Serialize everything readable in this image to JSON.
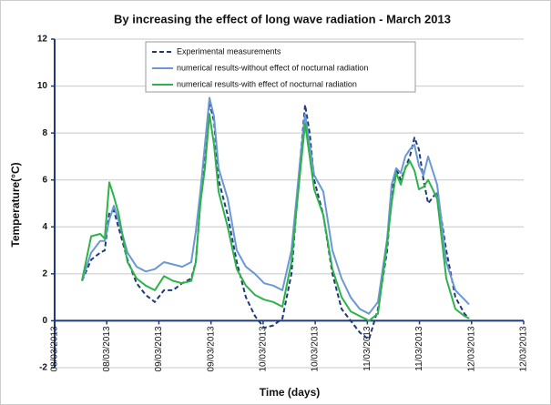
{
  "chart_data": {
    "type": "line",
    "title": "By increasing the effect of long wave radiation - March 2013",
    "x_label": "Time (days)",
    "y_label": "Temperature(°C)",
    "xlim": [
      0,
      4.5
    ],
    "xticks": [
      {
        "value": 0,
        "label": "08/03/2013"
      },
      {
        "value": 0.5,
        "label": "08/03/2013"
      },
      {
        "value": 1,
        "label": "09/03/2013"
      },
      {
        "value": 1.5,
        "label": "09/03/2013"
      },
      {
        "value": 2,
        "label": "10/03/2013"
      },
      {
        "value": 2.5,
        "label": "10/03/2013"
      },
      {
        "value": 3,
        "label": "11/03/2013"
      },
      {
        "value": 3.5,
        "label": "11/03/2013"
      },
      {
        "value": 4,
        "label": "12/03/2013"
      },
      {
        "value": 4.5,
        "label": "12/03/2013"
      }
    ],
    "ylim": [
      -2,
      12
    ],
    "yticks": [
      -2,
      0,
      2,
      4,
      6,
      8,
      10,
      12
    ],
    "grid": true,
    "x": [
      0.262,
      0.35,
      0.437,
      0.481,
      0.524,
      0.568,
      0.612,
      0.699,
      0.786,
      0.874,
      0.961,
      1.049,
      1.136,
      1.223,
      1.311,
      1.354,
      1.398,
      1.442,
      1.485,
      1.529,
      1.573,
      1.66,
      1.748,
      1.835,
      1.922,
      2.01,
      2.097,
      2.185,
      2.272,
      2.359,
      2.403,
      2.447,
      2.49,
      2.578,
      2.665,
      2.753,
      2.84,
      2.927,
      3.015,
      3.102,
      3.19,
      3.233,
      3.277,
      3.321,
      3.364,
      3.408,
      3.452,
      3.495,
      3.539,
      3.583,
      3.67,
      3.757,
      3.845,
      3.932,
      3.976
    ],
    "series": [
      {
        "name": "Experimental measurements",
        "color": "#1f3a7a",
        "dashed": true,
        "values": [
          1.7,
          2.6,
          2.9,
          3.0,
          4.6,
          4.7,
          4.0,
          2.6,
          1.6,
          1.1,
          0.8,
          1.3,
          1.3,
          1.6,
          1.8,
          2.5,
          5.0,
          7.0,
          9.3,
          8.5,
          6.0,
          4.5,
          2.5,
          1.0,
          0.2,
          -0.3,
          -0.2,
          0.1,
          2.0,
          7.0,
          9.2,
          8.0,
          6.0,
          4.5,
          2.0,
          0.5,
          0.0,
          -0.5,
          -0.8,
          0.5,
          3.0,
          5.5,
          6.5,
          6.0,
          6.5,
          7.0,
          7.8,
          7.3,
          6.0,
          5.0,
          5.5,
          3.0,
          1.0,
          0.3,
          0.1
        ]
      },
      {
        "name": "numerical results-without effect of nocturnal radiation",
        "color": "#6a98d4",
        "dashed": false,
        "values": [
          1.7,
          2.9,
          3.4,
          3.4,
          4.3,
          4.9,
          4.3,
          2.9,
          2.3,
          2.1,
          2.2,
          2.5,
          2.4,
          2.3,
          2.5,
          3.8,
          5.5,
          7.5,
          9.5,
          8.7,
          6.5,
          5.2,
          3.0,
          2.3,
          2.0,
          1.6,
          1.5,
          1.3,
          3.0,
          7.0,
          8.8,
          7.5,
          6.2,
          5.5,
          3.0,
          1.8,
          1.0,
          0.5,
          0.3,
          0.8,
          3.5,
          5.8,
          6.5,
          6.3,
          7.0,
          7.3,
          7.5,
          6.6,
          6.2,
          7.0,
          5.8,
          2.5,
          1.3,
          0.9,
          0.7
        ]
      },
      {
        "name": "numerical results-with effect of nocturnal radiation",
        "color": "#2db34a",
        "dashed": false,
        "values": [
          1.7,
          3.6,
          3.7,
          3.5,
          5.9,
          5.3,
          4.6,
          2.5,
          1.8,
          1.5,
          1.3,
          1.9,
          1.7,
          1.6,
          1.7,
          2.5,
          5.0,
          6.5,
          8.8,
          7.5,
          5.5,
          4.0,
          2.2,
          1.5,
          1.1,
          0.9,
          0.8,
          0.6,
          2.5,
          6.5,
          8.4,
          7.0,
          5.6,
          4.5,
          2.2,
          1.0,
          0.4,
          0.2,
          0.0,
          0.3,
          3.3,
          5.0,
          6.3,
          5.8,
          6.5,
          6.8,
          6.4,
          5.6,
          5.7,
          6.0,
          5.2,
          1.8,
          0.5,
          0.2,
          0.1
        ]
      }
    ]
  }
}
